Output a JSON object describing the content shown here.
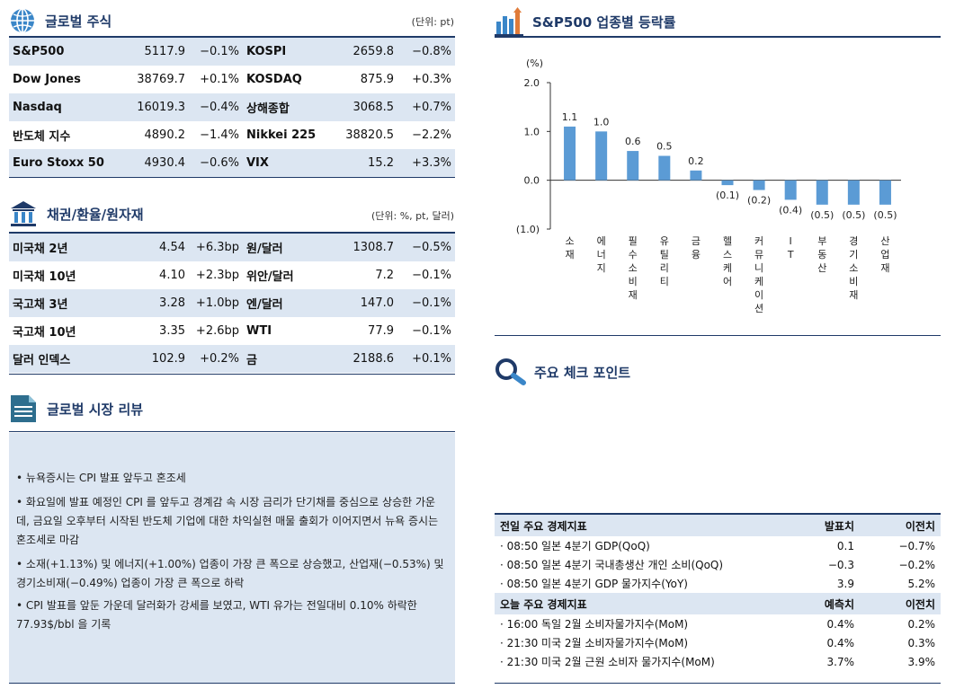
{
  "equity": {
    "title": "글로벌 주식",
    "unit": "(단위: pt)",
    "rows": [
      {
        "n1": "S&P500",
        "v1": "5117.9",
        "c1": "−0.1%",
        "n2": "KOSPI",
        "v2": "2659.8",
        "c2": "−0.8%"
      },
      {
        "n1": "Dow Jones",
        "v1": "38769.7",
        "c1": "+0.1%",
        "n2": "KOSDAQ",
        "v2": "875.9",
        "c2": "+0.3%"
      },
      {
        "n1": "Nasdaq",
        "v1": "16019.3",
        "c1": "−0.4%",
        "n2": "상해종합",
        "v2": "3068.5",
        "c2": "+0.7%"
      },
      {
        "n1": "반도체 지수",
        "v1": "4890.2",
        "c1": "−1.4%",
        "n2": "Nikkei 225",
        "v2": "38820.5",
        "c2": "−2.2%"
      },
      {
        "n1": "Euro Stoxx 50",
        "v1": "4930.4",
        "c1": "−0.6%",
        "n2": "VIX",
        "v2": "15.2",
        "c2": "+3.3%"
      }
    ]
  },
  "bonds": {
    "title": "채권/환율/원자재",
    "unit": "(단위: %, pt, 달러)",
    "rows": [
      {
        "n1": "미국채 2년",
        "v1": "4.54",
        "c1": "+6.3bp",
        "n2": "원/달러",
        "v2": "1308.7",
        "c2": "−0.5%"
      },
      {
        "n1": "미국채 10년",
        "v1": "4.10",
        "c1": "+2.3bp",
        "n2": "위안/달러",
        "v2": "7.2",
        "c2": "−0.1%"
      },
      {
        "n1": "국고채 3년",
        "v1": "3.28",
        "c1": "+1.0bp",
        "n2": "엔/달러",
        "v2": "147.0",
        "c2": "−0.1%"
      },
      {
        "n1": "국고채 10년",
        "v1": "3.35",
        "c1": "+2.6bp",
        "n2": "WTI",
        "v2": "77.9",
        "c2": "−0.1%"
      },
      {
        "n1": "달러 인덱스",
        "v1": "102.9",
        "c1": "+0.2%",
        "n2": "금",
        "v2": "2188.6",
        "c2": "+0.1%"
      }
    ]
  },
  "review": {
    "title": "글로벌 시장 리뷰",
    "bullets": [
      "뉴욕증시는 CPI 발표 앞두고 혼조세",
      "화요일에 발표 예정인 CPI 를 앞두고 경계감 속 시장 금리가 단기채를 중심으로 상승한 가운데, 금요일 오후부터 시작된 반도체 기업에 대한 차익실현 매물 출회가 이어지면서 뉴욕 증시는 혼조세로 마감",
      "소재(+1.13%) 및 에너지(+1.00%) 업종이 가장 큰 폭으로 상승했고, 산업재(−0.53%) 및 경기소비재(−0.49%) 업종이 가장 큰 폭으로 하락",
      "CPI 발표를 앞둔 가운데 달러화가 강세를 보였고, WTI 유가는 전일대비 0.10% 하락한 77.93$/bbl 을 기록"
    ]
  },
  "sector": {
    "title": "S&P500 업종별 등락률"
  },
  "chart_data": {
    "type": "bar",
    "ylabel": "(%)",
    "ylim": [
      -1.0,
      2.0
    ],
    "yticks": [
      "2.0",
      "1.0",
      "0.0",
      "(1.0)"
    ],
    "categories": [
      "소재",
      "에너지",
      "필수소비재",
      "유틸리티",
      "금융",
      "헬스케어",
      "커뮤니케이션",
      "IT",
      "부동산",
      "경기소비재",
      "산업재"
    ],
    "values": [
      1.1,
      1.0,
      0.6,
      0.5,
      0.2,
      -0.1,
      -0.2,
      -0.4,
      -0.5,
      -0.5,
      -0.5
    ],
    "labels": [
      "1.1",
      "1.0",
      "0.6",
      "0.5",
      "0.2",
      "(0.1)",
      "(0.2)",
      "(0.4)",
      "(0.5)",
      "(0.5)",
      "(0.5)"
    ],
    "bar_color": "#5b9bd5",
    "grid": false
  },
  "checkpoint": {
    "title": "주요 체크 포인트"
  },
  "eco": {
    "prev_header": "전일 주요 경제지표",
    "prev_col1": "발표치",
    "prev_col2": "이전치",
    "prev_rows": [
      {
        "label": "· 08:50 일본 4분기 GDP(QoQ)",
        "a": "0.1",
        "b": "−0.7%"
      },
      {
        "label": "· 08:50 일본 4분기 국내총생산 개인 소비(QoQ)",
        "a": "−0.3",
        "b": "−0.2%"
      },
      {
        "label": "· 08:50 일본 4분기 GDP 물가지수(YoY)",
        "a": "3.9",
        "b": "5.2%"
      }
    ],
    "today_header": "오늘 주요 경제지표",
    "today_col1": "예측치",
    "today_col2": "이전치",
    "today_rows": [
      {
        "label": "· 16:00 독일 2월 소비자물가지수(MoM)",
        "a": "0.4%",
        "b": "0.2%"
      },
      {
        "label": "· 21:30 미국 2월 소비자물가지수(MoM)",
        "a": "0.4%",
        "b": "0.3%"
      },
      {
        "label": "· 21:30 미국 2월 근원 소비자 물가지수(MoM)",
        "a": "3.7%",
        "b": "3.9%"
      }
    ]
  },
  "colors": {
    "navy": "#1f3a68",
    "shade": "#dce6f2",
    "accent": "#5b9bd5",
    "orange": "#e07b39"
  }
}
